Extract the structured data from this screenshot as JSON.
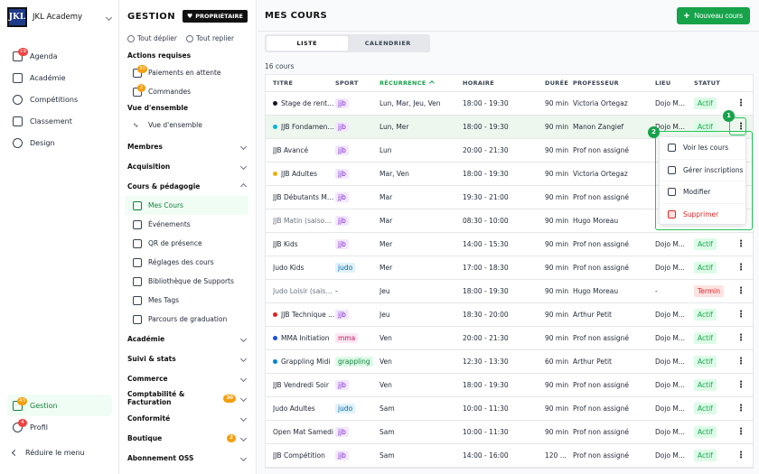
{
  "app": {
    "org_name": "JKL Academy",
    "logo_text": "JKL"
  },
  "nav": {
    "items": [
      {
        "label": "Agenda",
        "badge": "19"
      },
      {
        "label": "Académie",
        "badge": ""
      },
      {
        "label": "Compétitions",
        "badge": ""
      },
      {
        "label": "Classement",
        "badge": ""
      },
      {
        "label": "Design",
        "badge": ""
      }
    ],
    "gestion": {
      "label": "Gestion",
      "badge": "43"
    },
    "profil": {
      "label": "Profil",
      "badge": "4"
    },
    "reduce_label": "Réduire le menu"
  },
  "gestion_panel": {
    "title": "GESTION",
    "owner_badge": "PROPRIÉTAIRE",
    "expand_all": "Tout déplier",
    "collapse_all": "Tout replier",
    "actions_header": "Actions requises",
    "actions": [
      {
        "label": "Paiements en attente",
        "badge": "30"
      },
      {
        "label": "Commandes",
        "badge": "2"
      }
    ],
    "overview_header": "Vue d'ensemble",
    "overview_item": "Vue d'ensemble",
    "sections_top": [
      "Membres",
      "Acquisition"
    ],
    "courses_section": "Cours & pédagogie",
    "courses_items": [
      "Mes Cours",
      "Événements",
      "QR de présence",
      "Réglages des cours",
      "Bibliothèque de Supports",
      "Mes Tags",
      "Parcours de graduation"
    ],
    "sections_bottom": [
      {
        "label": "Académie",
        "badge": ""
      },
      {
        "label": "Suivi & stats",
        "badge": ""
      },
      {
        "label": "Commerce",
        "badge": ""
      },
      {
        "label": "Comptabilité & Facturation",
        "badge": "30"
      },
      {
        "label": "Conformité",
        "badge": ""
      },
      {
        "label": "Boutique",
        "badge": "2"
      },
      {
        "label": "Abonnement OSS",
        "badge": ""
      }
    ]
  },
  "main": {
    "title": "MES COURS",
    "new_button": "Nouveau cours",
    "tabs": [
      "LISTE",
      "CALENDRIER"
    ],
    "count": "16 cours",
    "columns": [
      "TITRE",
      "SPORT",
      "RÉCURRENCE",
      "HORAIRE",
      "DURÉE",
      "PROFESSEUR",
      "LIEU",
      "STATUT"
    ],
    "rows": [
      {
        "title": "Stage de rentrée",
        "dot": "#111827",
        "sport": "jjb",
        "rec": "Lun, Mar, Jeu, Ven",
        "hor": "18:00 - 19:30",
        "dur": "90 min",
        "prof": "Victoria Ortegaz",
        "lieu": "Dojo M...",
        "stat": "Actif",
        "muted": false
      },
      {
        "title": "JJB Fondament...",
        "dot": "#06b6d4",
        "sport": "jjb",
        "rec": "Lun, Mer",
        "hor": "18:00 - 19:30",
        "dur": "90 min",
        "prof": "Manon Zangief",
        "lieu": "Dojo M...",
        "stat": "Actif",
        "muted": false
      },
      {
        "title": "JJB Avancé",
        "dot": "",
        "sport": "jjb",
        "rec": "Lun",
        "hor": "20:00 - 21:30",
        "dur": "90 min",
        "prof": "Prof non assigné",
        "lieu": "",
        "stat": "",
        "muted": false
      },
      {
        "title": "JJB Adultes",
        "dot": "#eab308",
        "sport": "jjb",
        "rec": "Mar, Ven",
        "hor": "18:00 - 19:30",
        "dur": "90 min",
        "prof": "Victoria Ortegaz",
        "lieu": "",
        "stat": "",
        "muted": false
      },
      {
        "title": "JJB Débutants Ma...",
        "dot": "",
        "sport": "jjb",
        "rec": "Mar",
        "hor": "19:30 - 21:00",
        "dur": "90 min",
        "prof": "Prof non assigné",
        "lieu": "",
        "stat": "",
        "muted": false
      },
      {
        "title": "JJB Matin (saison ...",
        "dot": "",
        "sport": "jjb",
        "rec": "Mar",
        "hor": "08:30 - 10:00",
        "dur": "90 min",
        "prof": "Hugo Moreau",
        "lieu": "",
        "stat": "",
        "muted": true
      },
      {
        "title": "JJB Kids",
        "dot": "",
        "sport": "jjb",
        "rec": "Mer",
        "hor": "14:00 - 15:30",
        "dur": "90 min",
        "prof": "Prof non assigné",
        "lieu": "Dojo M...",
        "stat": "Actif",
        "muted": false
      },
      {
        "title": "Judo Kids",
        "dot": "",
        "sport": "judo",
        "rec": "Mer",
        "hor": "17:00 - 18:30",
        "dur": "90 min",
        "prof": "Prof non assigné",
        "lieu": "Dojo M...",
        "stat": "Actif",
        "muted": false
      },
      {
        "title": "Judo Loisir (saison...",
        "dot": "",
        "sport": "-",
        "rec": "Jeu",
        "hor": "18:00 - 19:30",
        "dur": "90 min",
        "prof": "Hugo Moreau",
        "lieu": "-",
        "stat": "Termin",
        "muted": true
      },
      {
        "title": "JJB Technique ...",
        "dot": "#dc2626",
        "sport": "jjb",
        "rec": "Jeu",
        "hor": "18:30 - 20:00",
        "dur": "90 min",
        "prof": "Arthur Petit",
        "lieu": "Dojo M...",
        "stat": "Actif",
        "muted": false
      },
      {
        "title": "MMA Initiation",
        "dot": "#1d4ed8",
        "sport": "mma",
        "rec": "Ven",
        "hor": "20:00 - 21:30",
        "dur": "90 min",
        "prof": "Prof non assigné",
        "lieu": "Dojo M...",
        "stat": "Actif",
        "muted": false
      },
      {
        "title": "Grappling Midi",
        "dot": "#0284c7",
        "sport": "grappling",
        "rec": "Ven",
        "hor": "12:30 - 13:30",
        "dur": "60 min",
        "prof": "Arthur Petit",
        "lieu": "Dojo M...",
        "stat": "Actif",
        "muted": false
      },
      {
        "title": "JJB Vendredi Soir",
        "dot": "",
        "sport": "jjb",
        "rec": "Ven",
        "hor": "18:00 - 19:30",
        "dur": "90 min",
        "prof": "Prof non assigné",
        "lieu": "Dojo M...",
        "stat": "Actif",
        "muted": false
      },
      {
        "title": "Judo Adultes",
        "dot": "",
        "sport": "judo",
        "rec": "Sam",
        "hor": "10:00 - 11:30",
        "dur": "90 min",
        "prof": "Prof non assigné",
        "lieu": "Dojo M...",
        "stat": "Actif",
        "muted": false
      },
      {
        "title": "Open Mat Samedi",
        "dot": "",
        "sport": "jjb",
        "rec": "Sam",
        "hor": "10:00 - 11:30",
        "dur": "90 min",
        "prof": "Prof non assigné",
        "lieu": "Dojo M...",
        "stat": "Actif",
        "muted": false
      },
      {
        "title": "JJB Compétition",
        "dot": "",
        "sport": "jjb",
        "rec": "Sam",
        "hor": "14:00 - 16:00",
        "dur": "120 ...",
        "prof": "Prof non assigné",
        "lieu": "Dojo M...",
        "stat": "Actif",
        "muted": false
      }
    ],
    "dropdown": [
      "Voir les cours",
      "Gérer inscriptions",
      "Modifier",
      "Supprimer"
    ],
    "steps": [
      "1",
      "2"
    ]
  },
  "colors": {
    "accent": "#16a34a",
    "danger": "#dc2626"
  }
}
